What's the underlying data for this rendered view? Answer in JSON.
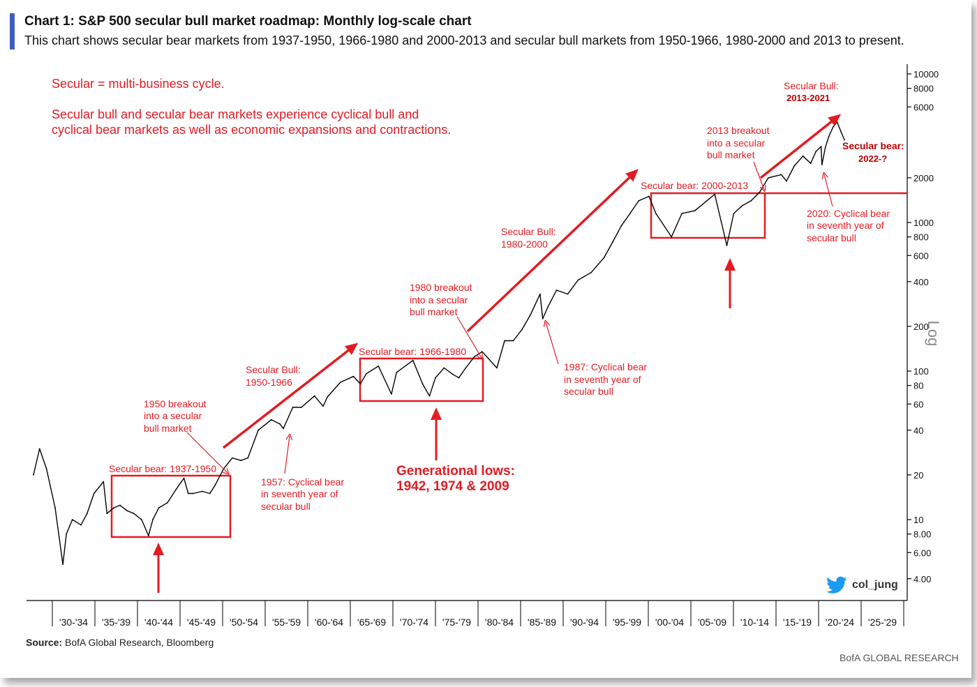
{
  "header": {
    "title": "Chart 1: S&P 500 secular bull market roadmap: Monthly log-scale chart",
    "subtitle": "This chart shows secular bear markets from 1937-1950, 1966-1980 and 2000-2013 and secular bull markets from 1950-1966, 1980-2000 and 2013 to present."
  },
  "footer": {
    "source_label": "Source:",
    "source_text": "BofA Global Research, Bloomberg",
    "brand": "BofA GLOBAL RESEARCH",
    "twitter_handle": "col_jung"
  },
  "colors": {
    "accent": "#3f5ebd",
    "annotation_red": "#e31b23",
    "series": "#000000",
    "twitter_blue": "#1d9bf0"
  },
  "chart_data": {
    "type": "line",
    "yscale": "log",
    "ylim": [
      3.5,
      12000
    ],
    "xlim": [
      1929,
      2031
    ],
    "ylabel": "Log",
    "y_ticks": [
      4,
      6,
      8,
      10,
      20,
      40,
      60,
      80,
      100,
      200,
      400,
      600,
      800,
      1000,
      2000,
      6000,
      8000,
      10000
    ],
    "y_tick_labels": [
      "4.00",
      "6.00",
      "8.00",
      "10",
      "20",
      "40",
      "60",
      "80",
      "100",
      "200",
      "400",
      "600",
      "800",
      "1000",
      "2000",
      "6000",
      "8000",
      "10000"
    ],
    "x_tick_labels": [
      "'30-'34",
      "'35-'39",
      "'40-'44",
      "'45-'49",
      "'50-'54",
      "'55-'59",
      "'60-'64",
      "'65-'69",
      "'70-'74",
      "'75-'79",
      "'80-'84",
      "'85-'89",
      "'90-'94",
      "'95-'99",
      "'00-'04",
      "'05-'09",
      "'10-'14",
      "'15-'19",
      "'20-'24",
      "'25-'29"
    ],
    "series": [
      {
        "x": [
          1929.0,
          1929.7,
          1930.5,
          1931.5,
          1932.4,
          1932.8,
          1933.5,
          1934.5,
          1935.2,
          1936.0,
          1937.1,
          1937.5,
          1938.3,
          1939.0,
          1939.8,
          1940.6,
          1941.5,
          1942.3,
          1942.8,
          1943.5,
          1944.5,
          1945.5,
          1946.4,
          1946.9,
          1947.5,
          1948.5,
          1949.4,
          1950.0,
          1951.0,
          1952.0,
          1953.0,
          1953.8,
          1955.0,
          1956.5,
          1957.5,
          1957.9,
          1959.0,
          1960.0,
          1961.5,
          1962.5,
          1963.0,
          1964.5,
          1966.0,
          1966.8,
          1967.5,
          1968.9,
          1970.4,
          1971.0,
          1972.9,
          1974.0,
          1974.8,
          1975.5,
          1976.5,
          1977.5,
          1978.2,
          1979.0,
          1980.0,
          1980.9,
          1982.6,
          1983.5,
          1984.5,
          1985.5,
          1986.5,
          1987.6,
          1987.9,
          1988.5,
          1989.5,
          1990.8,
          1992.0,
          1993.5,
          1995.0,
          1996.0,
          1997.0,
          1998.0,
          1999.0,
          2000.2,
          2001.0,
          2002.8,
          2004.0,
          2005.5,
          2007.8,
          2009.2,
          2010.0,
          2011.0,
          2012.0,
          2013.0,
          2014.0,
          2015.5,
          2016.1,
          2017.0,
          2018.0,
          2018.9,
          2019.5,
          2020.1,
          2020.2,
          2020.6,
          2021.0,
          2021.5,
          2021.95,
          2022.4,
          2022.8
        ],
        "values": [
          20,
          30,
          22,
          12,
          5.0,
          8.0,
          10,
          9.2,
          11,
          15,
          18,
          11,
          12,
          12.5,
          11.5,
          11,
          10,
          7.8,
          10,
          12,
          13,
          16,
          19,
          15,
          15,
          15.5,
          15,
          17,
          22,
          26,
          25,
          26,
          40,
          47,
          44,
          41,
          57,
          57,
          68,
          58,
          67,
          84,
          92,
          82,
          96,
          108,
          70,
          98,
          118,
          82,
          68,
          90,
          105,
          95,
          90,
          105,
          125,
          135,
          105,
          160,
          160,
          190,
          240,
          330,
          225,
          270,
          350,
          330,
          410,
          460,
          580,
          740,
          950,
          1150,
          1400,
          1500,
          1150,
          800,
          1150,
          1200,
          1550,
          700,
          1150,
          1300,
          1400,
          1600,
          2000,
          2100,
          1900,
          2400,
          2800,
          2500,
          3000,
          3250,
          2450,
          3200,
          3800,
          4400,
          4750,
          4100,
          3600
        ]
      }
    ],
    "annotations": {
      "definition_line1": "Secular = multi-business cycle.",
      "definition_line2": "Secular bull and secular bear markets experience cyclical bull and",
      "definition_line3": "cyclical bear markets as well as economic expansions and contractions.",
      "bear_1937": "Secular bear: 1937-1950",
      "bear_1966": "Secular bear: 1966-1980",
      "bear_2000": "Secular bear: 2000-2013",
      "breakout_1950": [
        "1950 breakout",
        "into a secular",
        "bull market"
      ],
      "breakout_1980": [
        "1980 breakout",
        "into a secular",
        "bull market"
      ],
      "breakout_2013": [
        "2013 breakout",
        "into a secular",
        "bull market"
      ],
      "bull_1950": [
        "Secular Bull:",
        "1950-1966"
      ],
      "bull_1980": [
        "Secular Bull:",
        "1980-2000"
      ],
      "bull_2013": [
        "Secular Bull:",
        "2013-2021"
      ],
      "bear_2022": [
        "Secular bear:",
        "2022-?"
      ],
      "cyc_1957": [
        "1957: Cyclical bear",
        "in seventh year of",
        "secular bull"
      ],
      "cyc_1987": [
        "1987: Cyclical bear",
        "in seventh year of",
        "secular bull"
      ],
      "cyc_2020": [
        "2020: Cyclical bear",
        "in seventh year of",
        "secular bull"
      ],
      "gen_lows": [
        "Generational lows:",
        "1942, 1974 & 2009"
      ]
    }
  }
}
